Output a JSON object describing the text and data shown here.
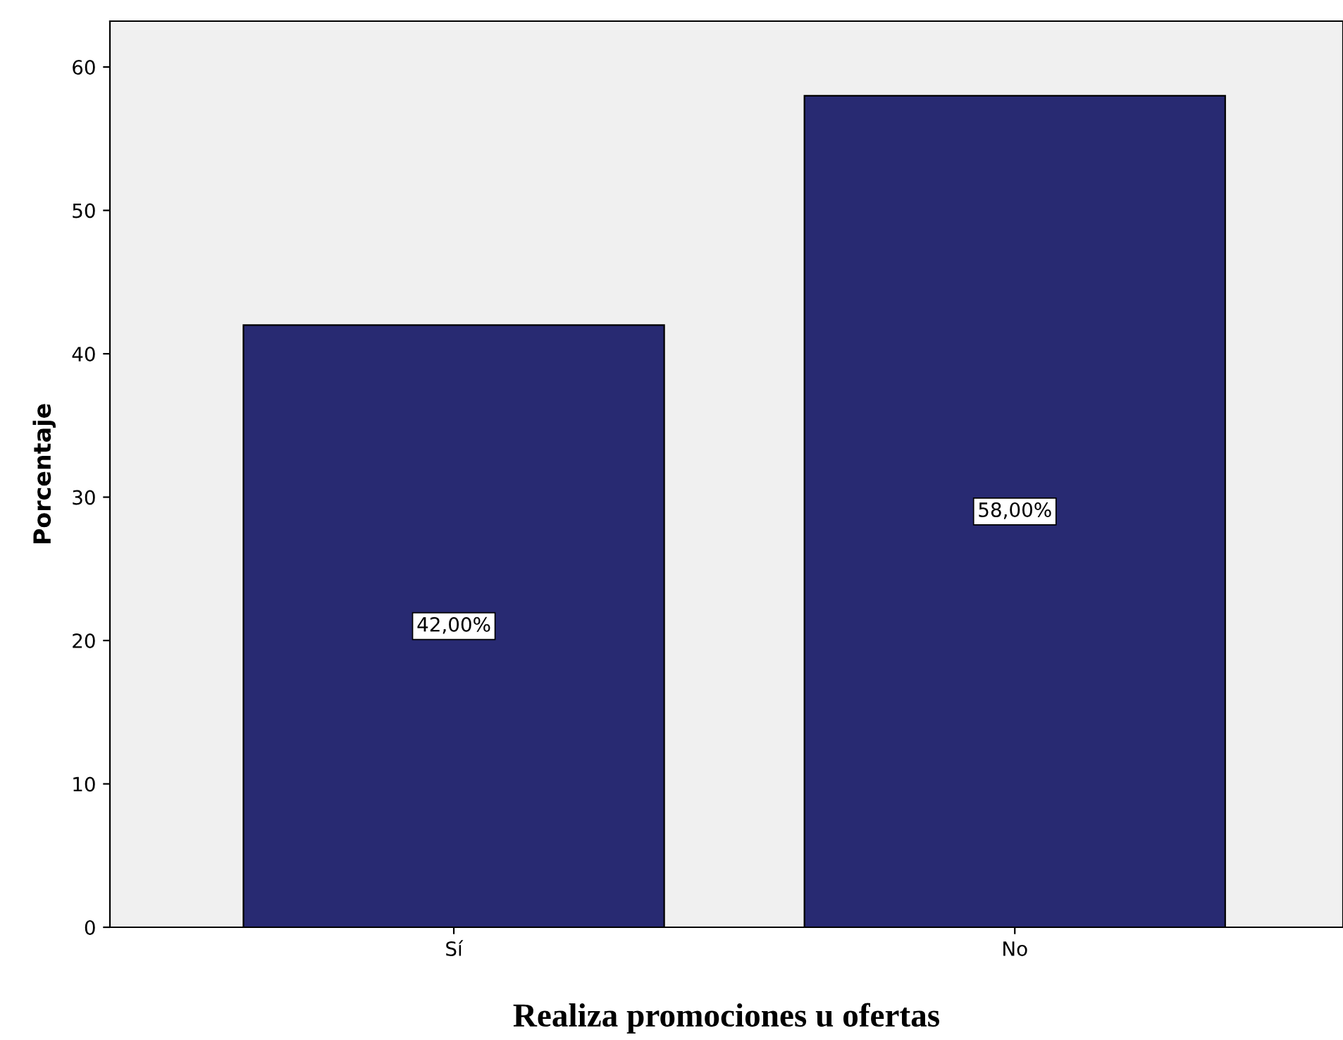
{
  "chart_data": {
    "type": "bar",
    "xlabel": "Realiza promociones u ofertas",
    "ylabel": "Porcentaje",
    "categories": [
      "Sí",
      "No"
    ],
    "values": [
      42,
      58
    ],
    "value_labels": [
      "42,00%",
      "58,00%"
    ],
    "color": "#282a72",
    "ylim": [
      0,
      63.2
    ],
    "yticks": [
      0,
      10,
      20,
      30,
      40,
      50,
      60
    ],
    "grid": false
  }
}
